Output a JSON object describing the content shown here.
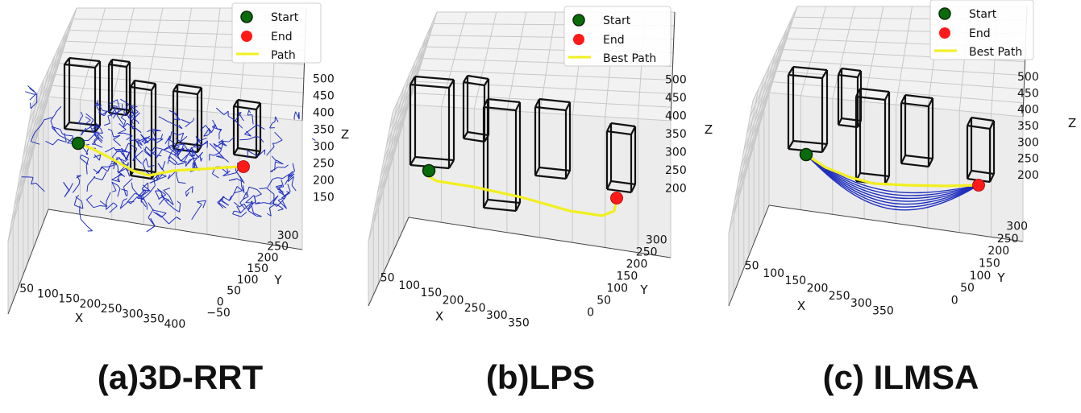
{
  "chart_data": [
    {
      "type": "scatter",
      "subtype": "3d-path",
      "caption": "(a)3D-RRT",
      "legend": [
        "Start",
        "End",
        "Path"
      ],
      "legend_placement": "top-right",
      "xlabel": "X",
      "ylabel": "Y",
      "zlabel": "Z",
      "x_ticks": [
        "50",
        "100",
        "150",
        "200",
        "250",
        "300",
        "350",
        "400"
      ],
      "y_ticks": [
        "−50",
        "0",
        "50",
        "100",
        "150",
        "200",
        "250",
        "300"
      ],
      "z_ticks": [
        "150",
        "200",
        "250",
        "300",
        "350",
        "400",
        "450",
        "500"
      ],
      "grid": true,
      "has_tree": true,
      "colors": {
        "start": "#0a6b0a",
        "end": "#ff1a1a",
        "path": "#f2ef1e",
        "tree": "#1f2fbf",
        "obstacle": "#111111"
      }
    },
    {
      "type": "scatter",
      "subtype": "3d-path",
      "caption": "(b)LPS",
      "legend": [
        "Start",
        "End",
        "Best Path"
      ],
      "legend_placement": "top-right",
      "xlabel": "X",
      "ylabel": "Y",
      "zlabel": "Z",
      "x_ticks": [
        "50",
        "100",
        "150",
        "200",
        "250",
        "300",
        "350"
      ],
      "y_ticks": [
        "0",
        "50",
        "100",
        "150",
        "200",
        "250",
        "300"
      ],
      "z_ticks": [
        "200",
        "250",
        "300",
        "350",
        "400",
        "450",
        "500"
      ],
      "grid": true,
      "has_tree": false,
      "colors": {
        "start": "#0a6b0a",
        "end": "#ff1a1a",
        "path": "#f2ef1e",
        "obstacle": "#111111"
      }
    },
    {
      "type": "scatter",
      "subtype": "3d-path",
      "caption": "(c) ILMSA",
      "legend": [
        "Start",
        "End",
        "Best Path"
      ],
      "legend_placement": "top-right",
      "xlabel": "X",
      "ylabel": "Y",
      "zlabel": "Z",
      "x_ticks": [
        "50",
        "100",
        "150",
        "200",
        "250",
        "300",
        "350"
      ],
      "y_ticks": [
        "0",
        "50",
        "100",
        "150",
        "200",
        "250",
        "300"
      ],
      "z_ticks": [
        "200",
        "250",
        "300",
        "350",
        "400",
        "450",
        "500"
      ],
      "grid": true,
      "has_tree": false,
      "candidate_paths": 7,
      "colors": {
        "start": "#0a6b0a",
        "end": "#ff1a1a",
        "path": "#f2ef1e",
        "candidates": "#1f2fbf",
        "obstacle": "#111111"
      }
    }
  ]
}
